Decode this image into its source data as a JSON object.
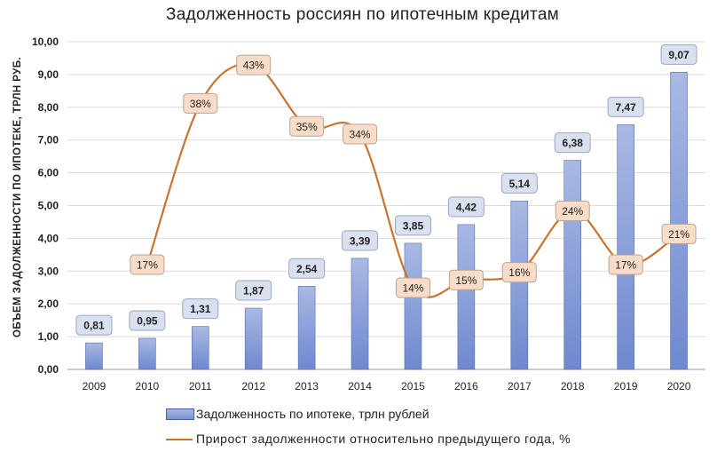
{
  "chart_data": {
    "type": "bar+line",
    "title": "Задолженность  россиян  по  ипотечным  кредитам",
    "ylabel": "ОБЪЕМ ЗАДОЛЖЕННОСТИ ПО ИПОТЕКЕ, ТРЛН РУБ.",
    "xlabel": "",
    "ylim": [
      0,
      10
    ],
    "y_ticks": [
      "0,00",
      "1,00",
      "2,00",
      "3,00",
      "4,00",
      "5,00",
      "6,00",
      "7,00",
      "8,00",
      "9,00",
      "10,00"
    ],
    "categories": [
      "2009",
      "2010",
      "2011",
      "2012",
      "2013",
      "2014",
      "2015",
      "2016",
      "2017",
      "2018",
      "2019",
      "2020"
    ],
    "grid": true,
    "legend": "bottom",
    "series": [
      {
        "name": "Задолженность по ипотеке, трлн рублей",
        "kind": "bar",
        "values": [
          0.81,
          0.95,
          1.31,
          1.87,
          2.54,
          3.39,
          3.85,
          4.42,
          5.14,
          6.38,
          7.47,
          9.07
        ],
        "labels": [
          "0,81",
          "0,95",
          "1,31",
          "1,87",
          "2,54",
          "3,39",
          "3,85",
          "4,42",
          "5,14",
          "6,38",
          "7,47",
          "9,07"
        ],
        "color": "#8da1da"
      },
      {
        "name": "Прирост  задолженности  относительно  предыдущего  года, %",
        "kind": "line",
        "values": [
          null,
          17,
          38,
          43,
          35,
          34,
          14,
          15,
          16,
          24,
          17,
          21
        ],
        "labels": [
          "",
          "17%",
          "38%",
          "43%",
          "35%",
          "34%",
          "14%",
          "15%",
          "16%",
          "24%",
          "17%",
          "21%"
        ],
        "color": "#c8742f"
      }
    ]
  }
}
